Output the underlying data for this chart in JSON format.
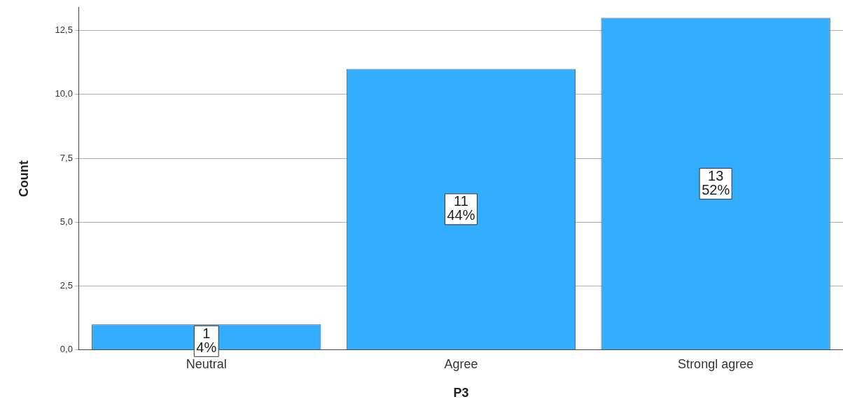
{
  "chart_data": {
    "type": "bar",
    "xlabel": "P3",
    "ylabel": "Count",
    "categories": [
      "Neutral",
      "Agree",
      "Strongl agree"
    ],
    "values": [
      1,
      11,
      13
    ],
    "value_labels": [
      "1\n4%",
      "11\n44%",
      "13\n52%"
    ],
    "color": "#33adff",
    "ylim": [
      0,
      13.4
    ],
    "yticks": [
      {
        "value": 0,
        "label": "0,0"
      },
      {
        "value": 2.5,
        "label": "2,5"
      },
      {
        "value": 5,
        "label": "5,0"
      },
      {
        "value": 7.5,
        "label": "7,5"
      },
      {
        "value": 10,
        "label": "10,0"
      },
      {
        "value": 12.5,
        "label": "12,5"
      }
    ],
    "grid": "y",
    "legend": false
  }
}
